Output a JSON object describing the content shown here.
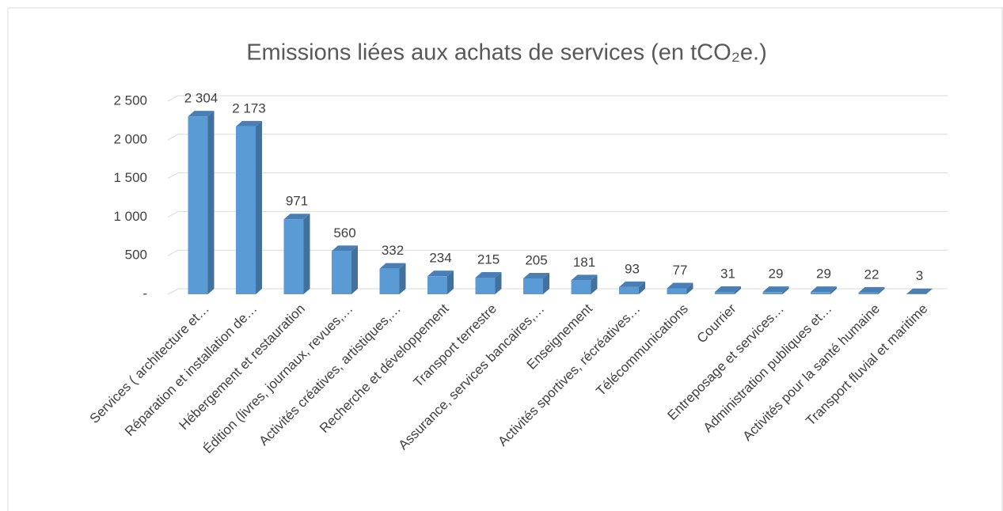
{
  "chart_data": {
    "type": "bar3d",
    "title": "Emissions liées aux achats de services (en tCO₂e.)",
    "categories": [
      "Services ( architecture et…",
      "Réparation et installation de…",
      "Hébergement et restauration",
      "Édition (livres, journaux, revues,…",
      "Activités créatives, artistiques,…",
      "Recherche et développement",
      "Transport terrestre",
      "Assurance, services bancaires,…",
      "Enseignement",
      "Activités sportives, récréatives…",
      "Télécommunications",
      "Courrier",
      "Entreposage et services…",
      "Administration publiques et…",
      "Activités pour la santé humaine",
      "Transport fluvial et maritime"
    ],
    "values": [
      2304,
      2173,
      971,
      560,
      332,
      234,
      215,
      205,
      181,
      93,
      77,
      31,
      29,
      29,
      22,
      3
    ],
    "value_labels": [
      "2 304",
      "2 173",
      "971",
      "560",
      "332",
      "234",
      "215",
      "205",
      "181",
      "93",
      "77",
      "31",
      "29",
      "29",
      "22",
      "3"
    ],
    "color": "#5b9bd5",
    "ylim": [
      0,
      2500
    ],
    "yticks": [
      {
        "value": 0,
        "label": "-"
      },
      500,
      {
        "value": 1000,
        "label": "1 000"
      },
      {
        "value": 1500,
        "label": "1 500"
      },
      {
        "value": 2000,
        "label": "2 000"
      },
      {
        "value": 2500,
        "label": "2 500"
      }
    ],
    "grid": true
  }
}
